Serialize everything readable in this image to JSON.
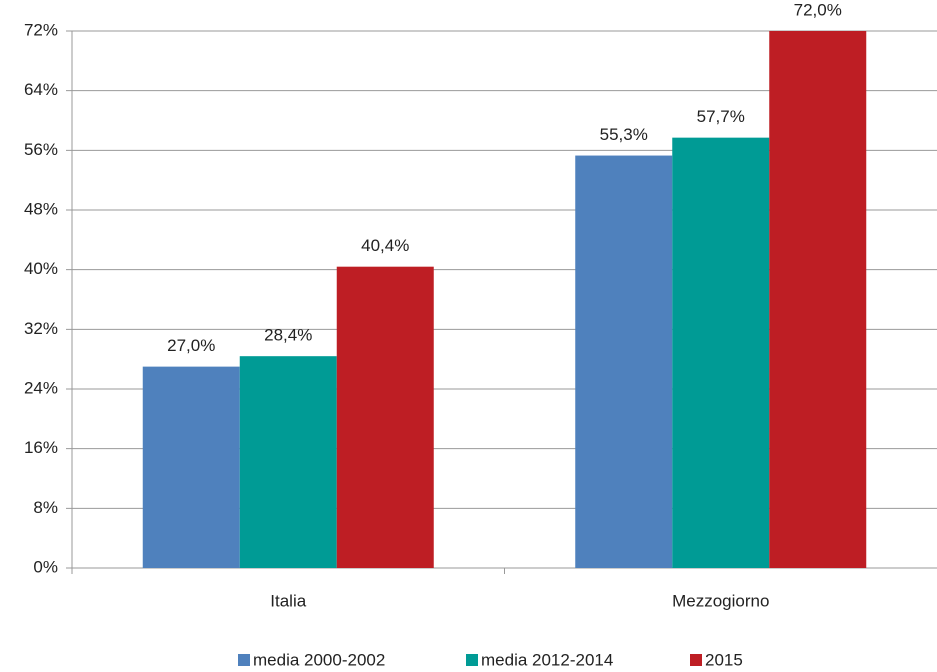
{
  "chart_data": {
    "type": "bar",
    "categories": [
      "Italia",
      "Mezzogiorno"
    ],
    "series": [
      {
        "name": "media 2000-2002",
        "color": "#4f81bd",
        "values": [
          27.0,
          55.3
        ],
        "value_labels": [
          "27,0%",
          "55,3%"
        ]
      },
      {
        "name": "media 2012-2014",
        "color": "#009b95",
        "values": [
          28.4,
          57.7
        ],
        "value_labels": [
          "28,4%",
          "57,7%"
        ]
      },
      {
        "name": "2015",
        "color": "#be1e24",
        "values": [
          40.4,
          72.0
        ],
        "value_labels": [
          "40,4%",
          "72,0%"
        ]
      }
    ],
    "ylim": [
      0,
      72
    ],
    "yticks": [
      {
        "value": 0,
        "label": "0%"
      },
      {
        "value": 8,
        "label": "8%"
      },
      {
        "value": 16,
        "label": "16%"
      },
      {
        "value": 24,
        "label": "24%"
      },
      {
        "value": 32,
        "label": "32%"
      },
      {
        "value": 40,
        "label": "40%"
      },
      {
        "value": 48,
        "label": "48%"
      },
      {
        "value": 56,
        "label": "56%"
      },
      {
        "value": 64,
        "label": "64%"
      },
      {
        "value": 72,
        "label": "72%"
      }
    ],
    "grid": true,
    "legend": "bottom"
  }
}
